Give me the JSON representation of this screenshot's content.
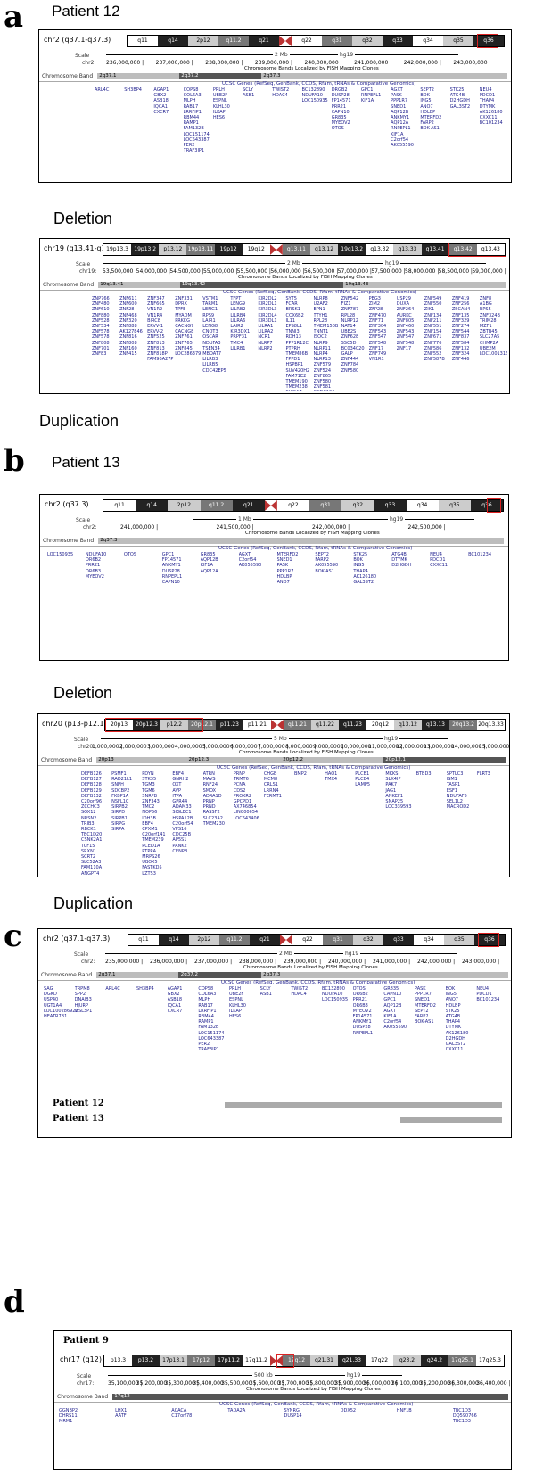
{
  "panels": {
    "a": {
      "letter": "a",
      "title": "Patient 12",
      "chr_label": "chr2 (q37.1-q37.3)",
      "bands": [
        "q11",
        "q14",
        "2p12",
        "q11.2",
        "q21",
        "q22",
        "q31",
        "q32",
        "q33",
        "q34",
        "q35",
        "q36"
      ],
      "scale_label": "Scale",
      "chr_name": "chr2:",
      "scale_value": "2 Mb",
      "assembly": "hg19",
      "ticks": [
        "236,000,000",
        "237,000,000",
        "238,000,000",
        "239,000,000",
        "240,000,000",
        "241,000,000",
        "242,000,000",
        "243,000,000"
      ],
      "cb_caption": "Chromosome Bands Localized by FISH Mapping Clones",
      "cb_label": "Chromosome Band",
      "cb_bands": [
        "2q37.1",
        "2q37.2",
        "2q37.3"
      ],
      "genes_caption": "UCSC Genes (RefSeq, GenBank, CCDS, Rfam, tRNAs & Comparative Genomics)",
      "gene_cols": [
        "ARL4C",
        "SH3BP4",
        "AGAP1\nGBX2\nASB18\nIQCA1\nCXCR7",
        "COPS8\nCOL6A3\nMLPH\nRAB17\nLRRFIP1\nRBM44\nRAMP1\nFAM132B\nLOC151174\nLOC643387\nPER2\nTRAF3IP1",
        "PRLH\nUBE2F\nESPNL\nKLHL30\nILKAP\nHES6",
        "SCLY\nASB1",
        "TWIST2\nHDAC4",
        "BC132890\nNDUFA10\nLOC150935",
        "DRGB2\nDUSP28\nFP14571\nPRR21\nCAPN10\nGR835\nMYEOV2\nOTOS",
        "GPC1\nRNPEPL1\nKIF1A",
        "AGXT\nPASK\nPPP1R7\nSNED1\nAQP12B\nANKMY1\nAQP12A\nRNPEPL1\nKIF1A\nC2orf54\nAK055590",
        "SEPT2\nBOK\nING5\nANO7\nHDLBP\nMTERFD2\nFARP2\nBOK-AS1",
        "STK25\nATG4B\nD2HGDH\nGAL3ST2",
        "NEU4\nPDCD1\nTHAP4\nDTYMK\nAK126180\nCXXC11\nBC101234"
      ]
    },
    "a_del": {
      "heading_above": "Deletion",
      "chr_label": "chr19 (q13.41-q13.43)",
      "bands": [
        "19p13.3",
        "19p13.2",
        "p13.12",
        "19p13.11",
        "19p12",
        "19q12",
        "q13.11",
        "q13.12",
        "19q13.2",
        "q13.32",
        "q13.33",
        "q13.41",
        "q13.42",
        "q13.43"
      ],
      "scale_label": "Scale",
      "chr_name": "chr19:",
      "scale_value": "2 Mb",
      "assembly": "hg19",
      "ticks": [
        "53,500,000",
        "54,000,000",
        "54,500,000",
        "55,000,000",
        "55,500,000",
        "56,000,000",
        "56,500,000",
        "57,000,000",
        "57,500,000",
        "58,000,000",
        "58,500,000",
        "59,000,000"
      ],
      "cb_caption": "Chromosome Bands Localized by FISH Mapping Clones",
      "cb_label": "Chromosome Band",
      "cb_bands": [
        "19q13.41",
        "19q13.42",
        "19q13.43"
      ],
      "genes_caption": "UCSC Genes (RefSeq, GenBank, CCDS, Rfam, tRNAs & Comparative Genomics)",
      "gene_cols": [
        "ZNP766\nZNF480\nZNF610\nZNF880\nZNF528\nZNF534\nZNF578\nZNF578\nZNF808\nZNF701\nZNF83",
        "ZNF611\nZNF600\nZNF28\nZNF468\nZNF320\nZNF888\nAK127846\nZNF816\nZNF808\nZNF160\nZNF415",
        "ZNF347\nZNF665\nVN1R2\nVN1R4\nBIRC8\nERVV-1\nERVV-2\nZNF525\nZNF813\nZNF813\nZNF818P\nFAM90A27P",
        "ZNF331\nDPRX\nTPFE\nMYADM\nPRKCG\nCACNG7\nCACNG8\nZNF761\nZNF765\nZNF845\nLOC286379",
        "VSTM1\nTARM1\nLENG1\nRPS9\nLAIR1\nLENG8\nCNOT3\nOSCAR\nNDUFA3\nTSEN34\nMBOAT7\nLILRB3\nLILRB5\nCDC42EP5",
        "TFPT\nLENG9\nLILRB2\nLILRB4\nLILRA6\nLAIR2\nKIR3DX1\nPRPF31\nTMC4\nLILRB1",
        "KIR2DL2\nKIR2DL1\nKIR3DL3\nKIR2DL4\nKIR3DL1\nLILRA1\nLILRA2\nNCR1\nNLRP7\nNLRP2",
        "SYT5\nFCAR\nBRSK1\nCOX6B2\nIL11\nEPS8L1\nTNNI3\nRDH13\nPPP1R12C\nPTPRH\nTMEM86B\nFPPD1\nHSPBP1\nSUV420H2\nFAM71E2\nTMEM190\nTMEM238\nSHISA7",
        "NLRP8\nU2AF2\nEPN1\nTTYH1\nRPL28\nTMEM150B\nTNNT1\nISOC2\nNLRP9\nNLRP11\nNLRP4\nNLRP13\nZNF579\nZNF524\nZNF865\nZNF580\nZNF581\nCCDC106",
        "ZNF542\nFIZ1\nZNF787\nRPL28\nNLRP12\nNAT14\nUBE2S\nZNF628\nSSC5D\nBC034020\nGALP\nZNF444\nZNF784\nZNF580",
        "PEG3\nZIM2\nZFP28\nZNF470\nZNF71\nZNF304\nZNF543\nZNF547\nZNF548\nZNF17\nZNF749\nVN1R1",
        "USP29\nDUXA\nZNF264\nAURKC\nZNF805\nZNF460\nZNF543\nZNF547\nZNF548\nZNF17",
        "ZNF549\nZNF550\nZIK1\nZNF134\nZNF211\nZNF551\nZNF154\nZNF671\nZNF776\nZNF586\nZNF552\nZNF587B",
        "ZNF419\nZNF256\nZSCAN4\nZNF135\nZNF329\nZNF274\nZNF544\nZNF837\nZNF584\nZNF132\nZNF324\nZNF446",
        "ZNF8\nA1BG\nRPS5\nZNF324B\nTRIM28\nMZF1\nZBTB45\nSLC27A5\nCHMP2A\nUBE2M\nLOC100131691"
      ]
    },
    "a_dup": {
      "heading": "Duplication"
    },
    "b": {
      "letter": "b",
      "title": "Patient 13",
      "chr_label": "chr2 (q37.3)",
      "bands": [
        "q11",
        "q14",
        "2p12",
        "q11.2",
        "q21",
        "q22",
        "q31",
        "q32",
        "q33",
        "q34",
        "q35",
        "q36"
      ],
      "scale_label": "Scale",
      "chr_name": "chr2:",
      "scale_value": "1 Mb",
      "assembly": "hg19",
      "ticks": [
        "241,000,000",
        "241,500,000",
        "242,000,000",
        "242,500,000"
      ],
      "cb_caption": "Chromosome Bands Localized by FISH Mapping Clones",
      "cb_label": "Chromosome Band",
      "cb_bands": [
        "2q37.3"
      ],
      "genes_caption": "UCSC Genes (RefSeq, GenBank, CCDS, Rfam, tRNAs & Comparative Genomics)",
      "gene_cols": [
        "LOC150935",
        "NDUFA10\nOR6B2\nPRR21\nOR6B3\nMYEOV2",
        "OTOS",
        "GPC1\nFP14571\nANKMY1\nDUSP28\nRNPEPL1\nCAPN10",
        "GR835\nAQP12B\nKIF1A\nAQP12A",
        "AGXT\nC2orf54\nAK055590",
        "MTERFD2\nSNED1\nPASK\nPPP1R7\nHDLBP\nANO7",
        "SEPT2\nFARP2\nAK055590\nBOK-AS1",
        "STK25\nBOK\nING5\nTHAP4\nAK126180\nGAL3ST2",
        "ATG4B\nDTYMK\nD2HGDH",
        "NEU4\nPDCD1\nCXXC11",
        "BC101234"
      ]
    },
    "b_del": {
      "heading_above": "Deletion",
      "chr_label": "chr20 (p13-p12.1)",
      "bands": [
        "20p13",
        "20p12.3",
        "p12.2",
        "20p12.1",
        "p11.23",
        "p11.21",
        "q11.21",
        "q11.22",
        "q11.23",
        "20q12",
        "q13.12",
        "q13.13",
        "20q13.2",
        "20q13.33"
      ],
      "scale_label": "Scale",
      "chr_name": "chr20:",
      "scale_value": "5 Mb",
      "assembly": "hg19",
      "ticks": [
        "1,000,000",
        "2,000,000",
        "3,000,000",
        "4,000,000",
        "5,000,000",
        "6,000,000",
        "7,000,000",
        "8,000,000",
        "9,000,000",
        "10,000,000",
        "11,000,000",
        "12,000,000",
        "13,000,000",
        "14,000,000",
        "15,000,000"
      ],
      "cb_caption": "Chromosome Bands Localized by FISH Mapping Clones",
      "cb_label": "Chromosome Band",
      "cb_bands": [
        "20p13",
        "20p12.3",
        "20p12.2",
        "20p12.1"
      ],
      "genes_caption": "UCSC Genes (RefSeq, GenBank, CCDS, Rfam, tRNAs & Comparative Genomics)",
      "gene_cols": [
        "DEFB126\nDEFB127\nDEFB128\nDEFB129\nDEFB132\nC20orf96\nZCCHC3\nSOX12\nNRSN2\nTRIB3\nRBCK1\nTBC1D20\nCSNK2A1\nTCF15\nSRXN1\nSCRT2\nSLC52A3\nFAM110A\nANGPT4\nRSPO4\nTMEM74B\nC20orf202",
        "PSMF1\nRAD21L1\nSNPH\nSDCBP2\nFKBP1A\nNSFL1C\nSIRPB2\nSIRPD\nSIRPB1\nSIRPG\nSIRPA",
        "PDYN\nSTK35\nTGM3\nTGM6\nSNRPB\nZNF343\nTMC2\nNOP56\nIDH3B\nEBF4\nCPXM1\nC20orf141\nTMEM239\nPCED1A\nPTPRA\nMRPS26\nUBOX5\nFASTKD5\nLZTS3\nDDRGK1\nSLC4A11\nC20orf194\nC20orf27",
        "EBF4\nGNRH2\nOXT\nAVP\nITPA\nGPR44\nADAM33\nSIGLEC1\nHSPA12B\nC20orf54\nVPS16\nCDC25B\nAP5S1\nPANK2\nCENPB",
        "ATRN\nMAVS\nRNF24\nSMOX\nADRA1D\nPRNP\nPRND\nRASSF2\nSLC23A2\nTMEM230",
        "PRNP\nTRMT6\nPCNA\nCDS2\nPROKR2\nGPCPD1\nAX746854\nLINC00654\nLOC643406",
        "CHGB\nMCM8\nCRLS1\nLRRN4\nFERMT1",
        "BMP2",
        "HAO1\nTMX4",
        "PLCB1\nPLCB4\nLAMP5",
        "MKKS\nSLX4IP\nPAK7\nJAG1\nANKEF1\nSNAP25\nLOC339593",
        "BTBD3",
        "SPTLC3\nISM1\nTASP1\nESF1\nNDUFAF5\nSEL1L2\nMACROD2",
        "FLRT3"
      ]
    },
    "b_dup": {
      "heading": "Duplication"
    },
    "c": {
      "letter": "c",
      "chr_label": "chr2 (q37.1-q37.3)",
      "bands": [
        "q11",
        "q14",
        "2p12",
        "q11.2",
        "q21",
        "q22",
        "q31",
        "q32",
        "q33",
        "q34",
        "q35",
        "q36"
      ],
      "scale_label": "Scale",
      "chr_name": "chr2:",
      "scale_value": "2 Mb",
      "assembly": "hg19",
      "ticks": [
        "235,000,000",
        "236,000,000",
        "237,000,000",
        "238,000,000",
        "239,000,000",
        "240,000,000",
        "241,000,000",
        "242,000,000",
        "243,000,000"
      ],
      "cb_caption": "Chromosome Bands Localized by FISH Mapping Clones",
      "cb_label": "Chromosome Band",
      "cb_bands": [
        "2q37.1",
        "2q37.2",
        "2q37.3"
      ],
      "genes_caption": "UCSC Genes (RefSeq, GenBank, CCDS, Rfam, tRNAs & Comparative Genomics)",
      "gene_cols": [
        "SAG\nDGKD\nUSP40\nUGT1A4\nLOC100286922\nHEATR7B1",
        "TRPM8\nSPP2\nDNAJB3\nHJURP\nMSL3P1",
        "ARL4C",
        "SH3BP4",
        "AGAP1\nGBX2\nASB18\nIQCA1\nCXCR7",
        "COPS8\nCOL6A3\nMLPH\nRAB17\nLRRFIP1\nRBM44\nRAMP1\nFAM132B\nLOC151174\nLOC643387\nPER2\nTRAF3IP1",
        "PRLH\nUBE2F\nESPNL\nKLHL30\nILKAP\nHES6",
        "SCLY\nASB1",
        "TWIST2\nHDAC4",
        "BC132890\nNDUFA10\nLOC150935",
        "OTOS\nOR6B2\nPRR21\nOR6B3\nMYEOV2\nFP14571\nANKMY1\nDUSP28\nRNPEPL1",
        "GR835\nCAPN10\nGPC1\nAQP12B\nAGXT\nKIF1A\nC2orf54\nAK055590",
        "PASK\nPPP1R7\nSNED1\nMTERFD2\nSEPT2\nFARP2\nBOK-AS1",
        "BOK\nING5\nANO7\nHDLBP\nSTK25\nATG4B\nTHAP4\nDTYMK\nAK126180\nD2HGDH\nGAL3ST2\nCXXC11",
        "NEU4\nPDCD1\nBC101234"
      ],
      "bar_labels": [
        "Patient 12",
        "Patient 13"
      ],
      "coverage": [
        {
          "name": "Patient 12",
          "start": 236.9,
          "end": 243.2
        },
        {
          "name": "Patient 13",
          "start": 240.9,
          "end": 243.2
        }
      ],
      "range": [
        234.5,
        243.2
      ]
    },
    "d": {
      "letter": "d",
      "subtitle": "Patient 9",
      "chr_label": "chr17 (q12)",
      "bands": [
        "p13.3",
        "p13.2",
        "17p13.1",
        "17p12",
        "17p11.2",
        "17q11.2",
        "17q12",
        "q21.31",
        "q21.33",
        "17q22",
        "q23.2",
        "q24.2",
        "17q25.1",
        "17q25.3"
      ],
      "scale_label": "Scale",
      "chr_name": "chr17:",
      "scale_value": "500 kb",
      "assembly": "hg19",
      "ticks": [
        "35,100,000",
        "35,200,000",
        "35,300,000",
        "35,400,000",
        "35,500,000",
        "35,600,000",
        "35,700,000",
        "35,800,000",
        "35,900,000",
        "36,000,000",
        "36,100,000",
        "36,200,000",
        "36,300,000",
        "36,400,000"
      ],
      "cb_caption": "Chromosome Bands Localized by FISH Mapping Clones",
      "cb_label": "Chromosome Band",
      "cb_bands": [
        "17q12"
      ],
      "genes_caption": "UCSC Genes (RefSeq, GenBank, CCDS, Rfam, tRNAs & Comparative Genomics)",
      "gene_cols": [
        "GGNBP2\nDHRS11\nMRM1",
        "LHX1\nAATF",
        "ACACA\nC17orf78",
        "TADA2A",
        "SYNRG\nDUSP14",
        "DDX52",
        "HNF1B",
        "TBC1D3\nDQ590766\nTBC1D3"
      ]
    }
  }
}
